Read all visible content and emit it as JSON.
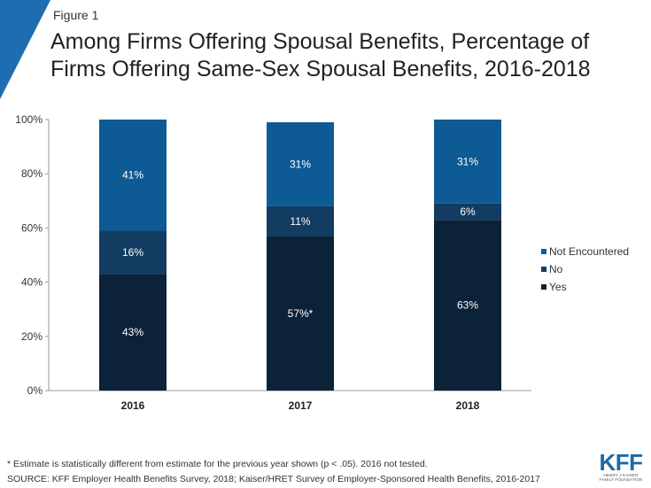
{
  "figure_label": "Figure 1",
  "colors": {
    "corner": "#1f6db1",
    "axis": "#999999"
  },
  "chart_data": {
    "type": "bar",
    "stacked": true,
    "title": "Among Firms Offering Spousal Benefits, Percentage of Firms Offering Same-Sex Spousal Benefits, 2016-2018",
    "categories": [
      "2016",
      "2017",
      "2018"
    ],
    "ylim": [
      0,
      100
    ],
    "yticks": [
      "0%",
      "20%",
      "40%",
      "60%",
      "80%",
      "100%"
    ],
    "grid": false,
    "legend_position": "right",
    "series": [
      {
        "name": "Yes",
        "color": "#0c2239",
        "values": [
          43,
          57,
          63
        ],
        "labels": [
          "43%",
          "57%*",
          "63%"
        ]
      },
      {
        "name": "No",
        "color": "#123c62",
        "values": [
          16,
          11,
          6
        ],
        "labels": [
          "16%",
          "11%",
          "6%"
        ]
      },
      {
        "name": "Not Encountered",
        "color": "#0d5a95",
        "values": [
          41,
          31,
          31
        ],
        "labels": [
          "41%",
          "31%",
          "31%"
        ]
      }
    ],
    "legend_order": [
      "Not Encountered",
      "No",
      "Yes"
    ]
  },
  "footnote": "* Estimate is statistically different from estimate for the previous year shown (p < .05).  2016 not tested.",
  "source": "SOURCE: KFF Employer Health Benefits Survey, 2018; Kaiser/HRET Survey of Employer-Sponsored Health Benefits, 2016-2017",
  "logo": {
    "mark": "KFF",
    "line1": "HENRY J KAISER",
    "line2": "FAMILY FOUNDATION"
  }
}
